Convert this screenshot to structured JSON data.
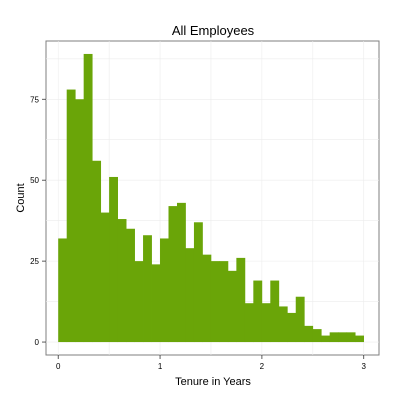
{
  "chart_data": {
    "type": "bar",
    "title": "All Employees",
    "xlabel": "Tenure in Years",
    "ylabel": "Count",
    "bar_color": "#6aa508",
    "grid": true,
    "x_range": [
      -0.12,
      3.15
    ],
    "y_range": [
      -4,
      93
    ],
    "x_ticks": [
      0,
      1,
      2,
      3
    ],
    "y_ticks": [
      0,
      25,
      50,
      75
    ],
    "bins": {
      "start": 0,
      "width": 0.0833
    },
    "values": [
      32,
      78,
      75,
      89,
      56,
      40,
      51,
      38,
      35,
      25,
      33,
      24,
      32,
      42,
      43,
      29,
      37,
      27,
      25,
      25,
      22,
      26,
      12,
      19,
      12,
      19,
      11,
      9,
      14,
      5,
      4,
      2,
      3,
      3,
      3,
      2
    ]
  }
}
